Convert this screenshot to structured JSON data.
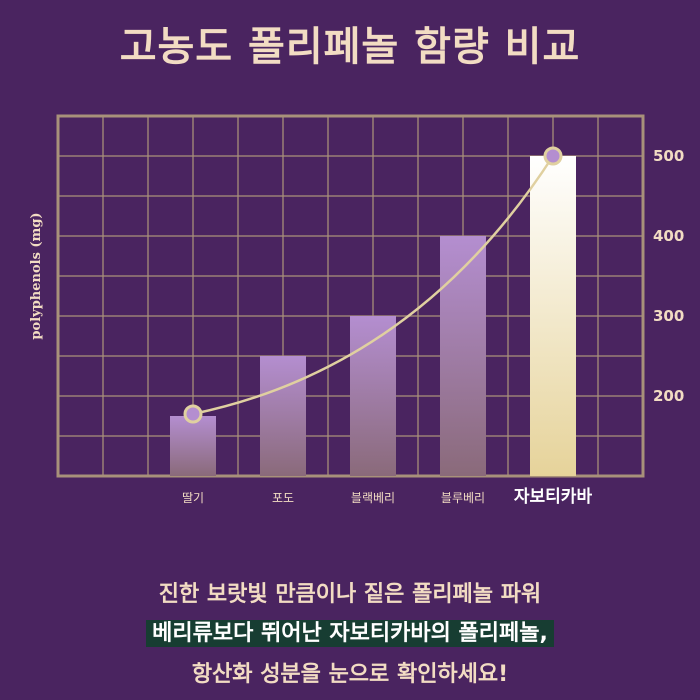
{
  "title": "고농도 폴리페놀 함량 비교",
  "colors": {
    "background": "#4a2460",
    "grid": "#a8917a",
    "text": "#f2dcc3",
    "bar_top": "#b48ed0",
    "bar_bottom": "#8a6a7a",
    "highlight_bar_top": "#ffffff",
    "highlight_bar_bottom": "#e6d39a",
    "line": "#e0d0a0",
    "caption_highlight_bg": "#173d32"
  },
  "chart_data": {
    "type": "bar",
    "categories": [
      "딸기",
      "포도",
      "블랙베리",
      "블루베리",
      "자보티카바"
    ],
    "values": [
      175,
      250,
      300,
      400,
      500
    ],
    "highlight_index": 4,
    "ylabel": "polyphenols (mg)",
    "yticks": [
      200,
      300,
      400,
      500
    ],
    "ylim": [
      100,
      550
    ],
    "grid": true,
    "trend_line": {
      "from_index": 0,
      "to_index": 4,
      "markers": true
    }
  },
  "caption": {
    "line1": "진한 보랏빛 만큼이나 짙은 폴리페놀 파워",
    "line2": "베리류보다 뛰어난 자보티카바의 폴리페놀,",
    "line3": "항산화 성분을 눈으로 확인하세요!"
  }
}
